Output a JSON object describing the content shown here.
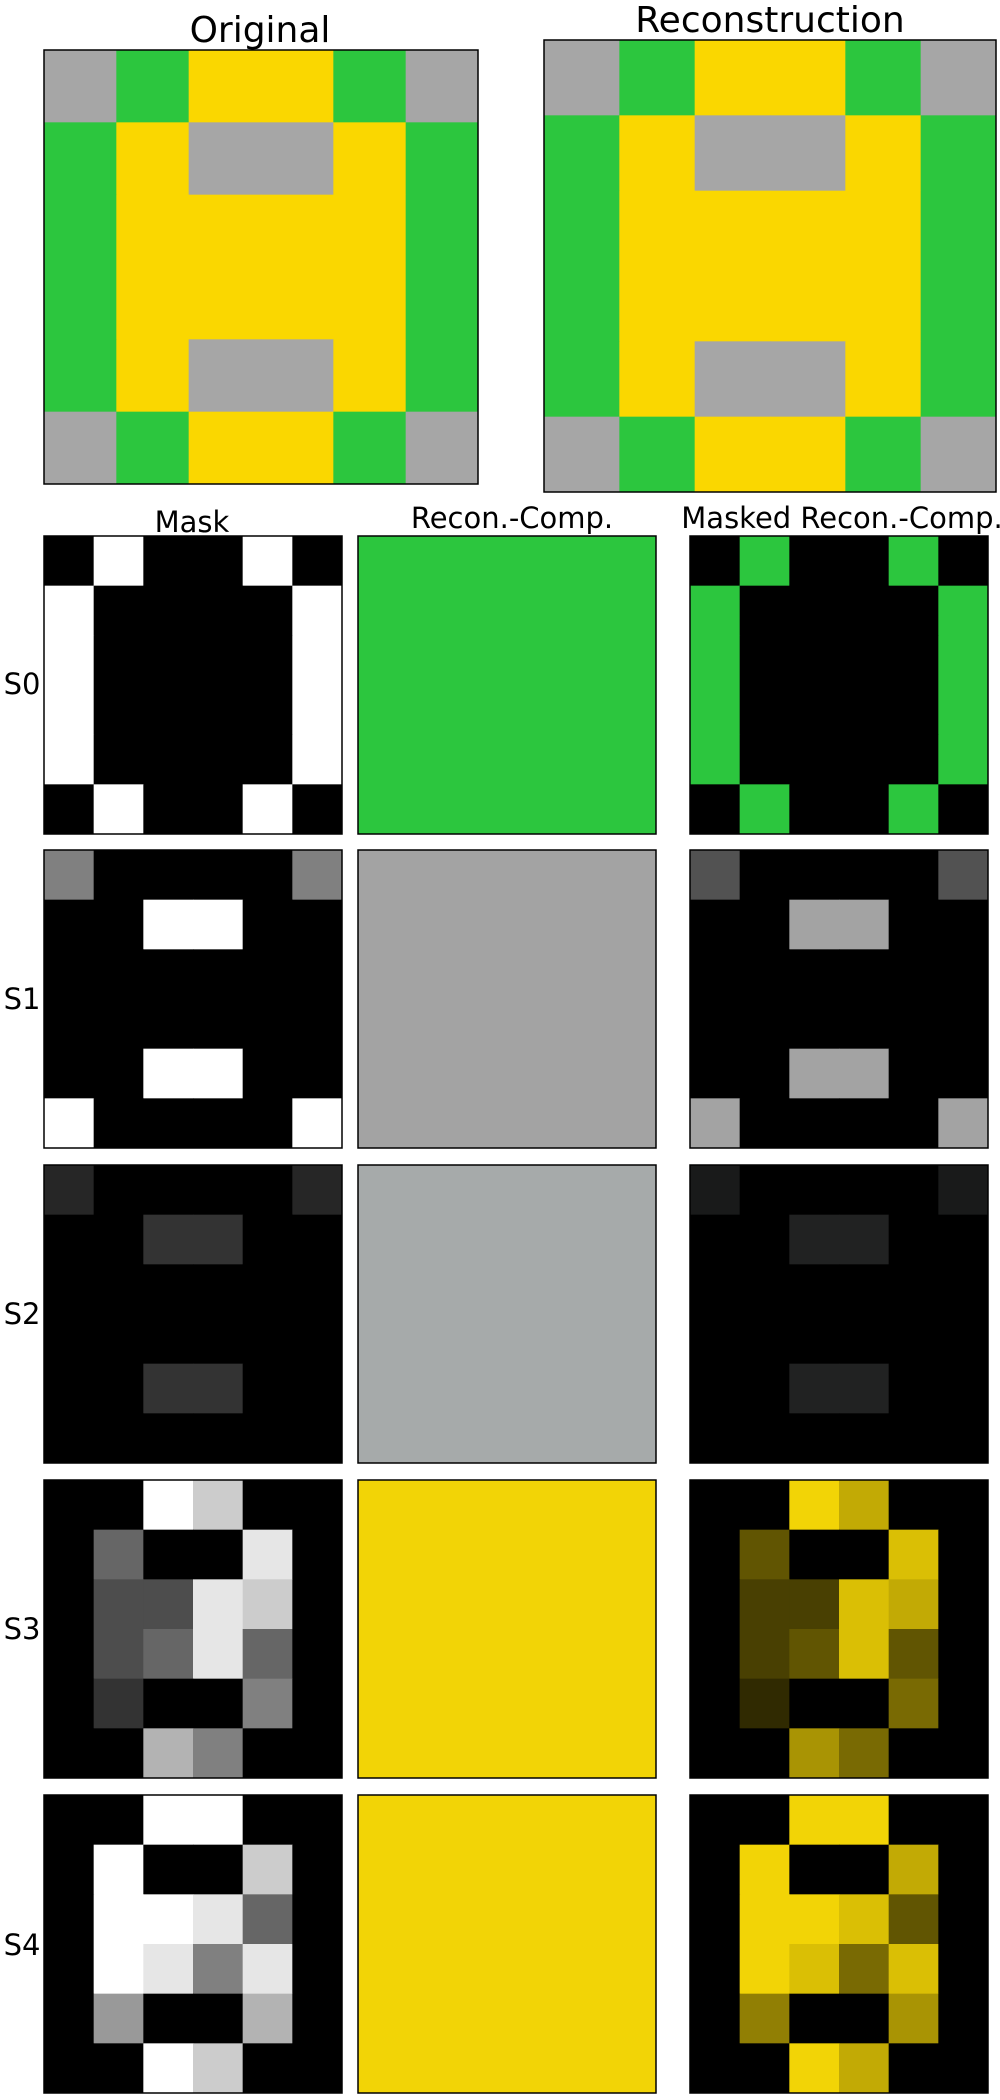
{
  "titles": {
    "original": "Original",
    "reconstruction": "Reconstruction"
  },
  "column_headers": {
    "mask": "Mask",
    "recon_comp": "Recon.-Comp.",
    "masked_recon_comp": "Masked Recon.-Comp."
  },
  "slots": [
    {
      "label": "S0",
      "component_color": "#2cc63e"
    },
    {
      "label": "S1",
      "component_color": "#a3a3a3"
    },
    {
      "label": "S2",
      "component_color": "#a6aaaa"
    },
    {
      "label": "S3",
      "component_color": "#f2d406"
    },
    {
      "label": "S4",
      "component_color": "#f2d406"
    }
  ],
  "colors": {
    "green": "#2cc63e",
    "gray": "#a6a6a6",
    "yellow": "#fad700",
    "mask_background": "#000000",
    "mask_foreground": "#ffffff"
  }
}
